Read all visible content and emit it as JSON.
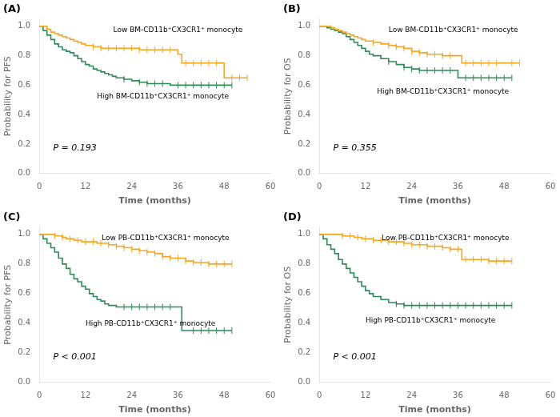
{
  "chart_data": [
    {
      "type": "line",
      "line_style": "steps",
      "title": "(A)",
      "xlabel": "Time (months)",
      "ylabel": "Probability for PFS",
      "annotations": [
        "P = 0.193"
      ],
      "xlim": [
        0,
        60
      ],
      "ylim": [
        0.0,
        1.05
      ],
      "xticks": [
        0,
        12,
        24,
        36,
        48,
        60
      ],
      "yticks": [
        {
          "value": 0.0,
          "label": "0.0"
        },
        {
          "value": 0.2,
          "label": "0.2"
        },
        {
          "value": 0.4,
          "label": "0.4"
        },
        {
          "value": 0.6,
          "label": "0.6"
        },
        {
          "value": 0.8,
          "label": "0.8"
        },
        {
          "value": 1.0,
          "label": "1.0"
        }
      ],
      "grid": false,
      "series": [
        {
          "name": "Low BM-CD11b⁺CX3CR1⁺ monocyte",
          "color": "#F5A623",
          "x": [
            0,
            1,
            2,
            3,
            4,
            5,
            6,
            7,
            8,
            9,
            10,
            11,
            12,
            14,
            16,
            18,
            20,
            22,
            24,
            26,
            28,
            30,
            32,
            34,
            36,
            37,
            38,
            40,
            42,
            44,
            46,
            48,
            50,
            52,
            54
          ],
          "values": [
            1.0,
            1.0,
            0.98,
            0.96,
            0.95,
            0.94,
            0.93,
            0.92,
            0.91,
            0.9,
            0.89,
            0.88,
            0.87,
            0.86,
            0.85,
            0.85,
            0.85,
            0.85,
            0.85,
            0.84,
            0.84,
            0.84,
            0.84,
            0.84,
            0.81,
            0.75,
            0.75,
            0.75,
            0.75,
            0.75,
            0.75,
            0.65,
            0.65,
            0.65,
            0.65
          ],
          "censor_x": [
            14,
            16,
            18,
            20,
            22,
            24,
            26,
            28,
            30,
            32,
            34,
            38,
            40,
            42,
            44,
            46,
            50,
            52,
            54
          ],
          "censor_y": [
            0.86,
            0.85,
            0.85,
            0.85,
            0.85,
            0.85,
            0.84,
            0.84,
            0.84,
            0.84,
            0.84,
            0.75,
            0.75,
            0.75,
            0.75,
            0.75,
            0.65,
            0.65,
            0.65
          ]
        },
        {
          "name": "High BM-CD11b⁺CX3CR1⁺ monocyte",
          "color": "#2E8B57",
          "x": [
            0,
            1,
            2,
            3,
            4,
            5,
            6,
            7,
            8,
            9,
            10,
            11,
            12,
            13,
            14,
            15,
            16,
            17,
            18,
            19,
            20,
            22,
            24,
            26,
            28,
            30,
            32,
            34,
            36,
            38,
            40,
            42,
            44,
            46,
            48,
            50
          ],
          "values": [
            1.0,
            0.97,
            0.94,
            0.91,
            0.88,
            0.86,
            0.84,
            0.83,
            0.82,
            0.8,
            0.78,
            0.76,
            0.74,
            0.73,
            0.71,
            0.7,
            0.69,
            0.68,
            0.67,
            0.66,
            0.65,
            0.64,
            0.63,
            0.62,
            0.61,
            0.61,
            0.61,
            0.6,
            0.6,
            0.6,
            0.6,
            0.6,
            0.6,
            0.6,
            0.6,
            0.6
          ],
          "censor_x": [
            22,
            26,
            28,
            30,
            32,
            36,
            38,
            40,
            42,
            44,
            46,
            48,
            50
          ],
          "censor_y": [
            0.64,
            0.62,
            0.61,
            0.61,
            0.61,
            0.6,
            0.6,
            0.6,
            0.6,
            0.6,
            0.6,
            0.6,
            0.6
          ]
        }
      ]
    },
    {
      "type": "line",
      "line_style": "steps",
      "title": "(B)",
      "xlabel": "Time (months)",
      "ylabel": "Probability for OS",
      "annotations": [
        "P = 0.355"
      ],
      "xlim": [
        0,
        60
      ],
      "ylim": [
        0.0,
        1.05
      ],
      "xticks": [
        0,
        12,
        24,
        36,
        48,
        60
      ],
      "yticks": [
        {
          "value": 0.0,
          "label": "0.0"
        },
        {
          "value": 0.2,
          "label": "0.2"
        },
        {
          "value": 0.4,
          "label": "0.4"
        },
        {
          "value": 0.6,
          "label": "0.6"
        },
        {
          "value": 0.8,
          "label": "0.8"
        },
        {
          "value": 1.0,
          "label": "1.0"
        }
      ],
      "grid": false,
      "series": [
        {
          "name": "Low BM-CD11b⁺CX3CR1⁺ monocyte",
          "color": "#F5A623",
          "x": [
            0,
            2,
            3,
            4,
            5,
            6,
            7,
            8,
            9,
            10,
            11,
            12,
            14,
            16,
            18,
            20,
            22,
            24,
            26,
            28,
            30,
            32,
            34,
            36,
            37,
            38,
            40,
            42,
            44,
            46,
            48,
            50,
            52
          ],
          "values": [
            1.0,
            1.0,
            0.99,
            0.98,
            0.97,
            0.96,
            0.95,
            0.94,
            0.93,
            0.92,
            0.91,
            0.9,
            0.89,
            0.88,
            0.87,
            0.86,
            0.85,
            0.83,
            0.82,
            0.81,
            0.81,
            0.8,
            0.8,
            0.8,
            0.75,
            0.75,
            0.75,
            0.75,
            0.75,
            0.75,
            0.75,
            0.75,
            0.75
          ],
          "censor_x": [
            14,
            18,
            20,
            22,
            24,
            26,
            28,
            30,
            32,
            34,
            38,
            40,
            42,
            44,
            46,
            50,
            52
          ],
          "censor_y": [
            0.89,
            0.87,
            0.86,
            0.85,
            0.83,
            0.82,
            0.81,
            0.81,
            0.8,
            0.8,
            0.75,
            0.75,
            0.75,
            0.75,
            0.75,
            0.75,
            0.75
          ]
        },
        {
          "name": "High BM-CD11b⁺CX3CR1⁺ monocyte",
          "color": "#2E8B57",
          "x": [
            0,
            2,
            3,
            4,
            5,
            6,
            7,
            8,
            9,
            10,
            11,
            12,
            13,
            14,
            16,
            18,
            20,
            22,
            24,
            26,
            28,
            30,
            32,
            34,
            36,
            37,
            38,
            40,
            42,
            44,
            46,
            48,
            50
          ],
          "values": [
            1.0,
            0.99,
            0.98,
            0.97,
            0.96,
            0.95,
            0.93,
            0.91,
            0.89,
            0.87,
            0.85,
            0.83,
            0.81,
            0.8,
            0.78,
            0.76,
            0.74,
            0.72,
            0.71,
            0.7,
            0.7,
            0.7,
            0.7,
            0.7,
            0.65,
            0.65,
            0.65,
            0.65,
            0.65,
            0.65,
            0.65,
            0.65,
            0.65
          ],
          "censor_x": [
            18,
            22,
            24,
            26,
            28,
            30,
            32,
            34,
            38,
            40,
            42,
            44,
            46,
            48,
            50
          ],
          "censor_y": [
            0.76,
            0.72,
            0.71,
            0.7,
            0.7,
            0.7,
            0.7,
            0.7,
            0.65,
            0.65,
            0.65,
            0.65,
            0.65,
            0.65,
            0.65
          ]
        }
      ]
    },
    {
      "type": "line",
      "line_style": "steps",
      "title": "(C)",
      "xlabel": "Time (months)",
      "ylabel": "Probability for PFS",
      "annotations": [
        "P < 0.001"
      ],
      "xlim": [
        0,
        60
      ],
      "ylim": [
        0.0,
        1.05
      ],
      "xticks": [
        0,
        12,
        24,
        36,
        48,
        60
      ],
      "yticks": [
        {
          "value": 0.0,
          "label": "0.0"
        },
        {
          "value": 0.2,
          "label": "0.2"
        },
        {
          "value": 0.4,
          "label": "0.4"
        },
        {
          "value": 0.6,
          "label": "0.6"
        },
        {
          "value": 0.8,
          "label": "0.8"
        },
        {
          "value": 1.0,
          "label": "1.0"
        }
      ],
      "grid": false,
      "series": [
        {
          "name": "Low PB-CD11b⁺CX3CR1⁺ monocyte",
          "color": "#F5A623",
          "x": [
            0,
            1,
            2,
            3,
            4,
            5,
            6,
            7,
            8,
            9,
            10,
            11,
            12,
            13,
            14,
            15,
            16,
            18,
            20,
            22,
            24,
            26,
            28,
            30,
            32,
            34,
            36,
            38,
            40,
            42,
            44,
            46,
            48,
            50
          ],
          "values": [
            1.0,
            1.0,
            1.0,
            1.0,
            0.99,
            0.99,
            0.98,
            0.97,
            0.97,
            0.96,
            0.96,
            0.95,
            0.95,
            0.95,
            0.95,
            0.94,
            0.94,
            0.93,
            0.92,
            0.91,
            0.9,
            0.89,
            0.88,
            0.87,
            0.85,
            0.84,
            0.84,
            0.82,
            0.81,
            0.81,
            0.8,
            0.8,
            0.8,
            0.8
          ],
          "censor_x": [
            4,
            6,
            8,
            10,
            12,
            14,
            16,
            18,
            20,
            22,
            24,
            26,
            28,
            30,
            32,
            34,
            36,
            38,
            40,
            42,
            44,
            46,
            48,
            50
          ],
          "censor_y": [
            0.99,
            0.98,
            0.97,
            0.96,
            0.95,
            0.95,
            0.94,
            0.93,
            0.92,
            0.91,
            0.9,
            0.89,
            0.88,
            0.87,
            0.85,
            0.84,
            0.84,
            0.82,
            0.81,
            0.81,
            0.8,
            0.8,
            0.8,
            0.8
          ]
        },
        {
          "name": "High PB-CD11b⁺CX3CR1⁺ monocyte",
          "color": "#2E8B57",
          "x": [
            0,
            1,
            2,
            3,
            4,
            5,
            6,
            7,
            8,
            9,
            10,
            11,
            12,
            13,
            14,
            15,
            16,
            17,
            18,
            20,
            22,
            24,
            26,
            28,
            30,
            32,
            34,
            36,
            37,
            38,
            40,
            42,
            44,
            46,
            48,
            50
          ],
          "values": [
            1.0,
            0.97,
            0.94,
            0.91,
            0.88,
            0.84,
            0.8,
            0.77,
            0.73,
            0.7,
            0.68,
            0.65,
            0.63,
            0.6,
            0.58,
            0.56,
            0.55,
            0.53,
            0.52,
            0.51,
            0.51,
            0.51,
            0.51,
            0.51,
            0.51,
            0.51,
            0.51,
            0.51,
            0.35,
            0.35,
            0.35,
            0.35,
            0.35,
            0.35,
            0.35,
            0.35
          ],
          "censor_x": [
            22,
            24,
            26,
            28,
            30,
            32,
            34,
            40,
            42,
            44,
            46,
            48,
            50
          ],
          "censor_y": [
            0.51,
            0.51,
            0.51,
            0.51,
            0.51,
            0.51,
            0.51,
            0.35,
            0.35,
            0.35,
            0.35,
            0.35,
            0.35
          ]
        }
      ]
    },
    {
      "type": "line",
      "line_style": "steps",
      "title": "(D)",
      "xlabel": "Time (months)",
      "ylabel": "Probability for OS",
      "annotations": [
        "P < 0.001"
      ],
      "xlim": [
        0,
        60
      ],
      "ylim": [
        0.0,
        1.05
      ],
      "xticks": [
        0,
        12,
        24,
        36,
        48,
        60
      ],
      "yticks": [
        {
          "value": 0.0,
          "label": "0.0"
        },
        {
          "value": 0.2,
          "label": "0.2"
        },
        {
          "value": 0.4,
          "label": "0.4"
        },
        {
          "value": 0.6,
          "label": "0.6"
        },
        {
          "value": 0.8,
          "label": "0.8"
        },
        {
          "value": 1.0,
          "label": "1.0"
        }
      ],
      "grid": false,
      "series": [
        {
          "name": "Low PB-CD11b⁺CX3CR1⁺ monocyte",
          "color": "#F5A623",
          "x": [
            0,
            1,
            2,
            3,
            4,
            5,
            6,
            7,
            8,
            9,
            10,
            11,
            12,
            14,
            16,
            18,
            20,
            22,
            24,
            26,
            28,
            30,
            32,
            34,
            36,
            37,
            38,
            40,
            42,
            44,
            46,
            48,
            50
          ],
          "values": [
            1.0,
            1.0,
            1.0,
            1.0,
            1.0,
            1.0,
            0.99,
            0.99,
            0.99,
            0.98,
            0.98,
            0.97,
            0.97,
            0.96,
            0.96,
            0.95,
            0.95,
            0.94,
            0.93,
            0.93,
            0.92,
            0.92,
            0.91,
            0.9,
            0.9,
            0.83,
            0.83,
            0.83,
            0.83,
            0.82,
            0.82,
            0.82,
            0.82
          ],
          "censor_x": [
            6,
            8,
            10,
            12,
            14,
            16,
            18,
            20,
            22,
            24,
            26,
            28,
            30,
            32,
            34,
            36,
            38,
            40,
            42,
            44,
            46,
            48,
            50
          ],
          "censor_y": [
            0.99,
            0.99,
            0.98,
            0.97,
            0.96,
            0.96,
            0.95,
            0.95,
            0.94,
            0.93,
            0.93,
            0.92,
            0.92,
            0.91,
            0.9,
            0.9,
            0.83,
            0.83,
            0.83,
            0.82,
            0.82,
            0.82,
            0.82
          ]
        },
        {
          "name": "High PB-CD11b⁺CX3CR1⁺ monocyte",
          "color": "#2E8B57",
          "x": [
            0,
            1,
            2,
            3,
            4,
            5,
            6,
            7,
            8,
            9,
            10,
            11,
            12,
            13,
            14,
            16,
            18,
            20,
            22,
            24,
            26,
            28,
            30,
            32,
            34,
            36,
            38,
            40,
            42,
            44,
            46,
            48,
            50
          ],
          "values": [
            1.0,
            0.97,
            0.93,
            0.9,
            0.87,
            0.83,
            0.8,
            0.77,
            0.74,
            0.71,
            0.68,
            0.65,
            0.62,
            0.6,
            0.58,
            0.56,
            0.54,
            0.53,
            0.52,
            0.52,
            0.52,
            0.52,
            0.52,
            0.52,
            0.52,
            0.52,
            0.52,
            0.52,
            0.52,
            0.52,
            0.52,
            0.52,
            0.52
          ],
          "censor_x": [
            20,
            22,
            24,
            26,
            28,
            30,
            32,
            34,
            36,
            38,
            40,
            42,
            44,
            46,
            48,
            50
          ],
          "censor_y": [
            0.53,
            0.52,
            0.52,
            0.52,
            0.52,
            0.52,
            0.52,
            0.52,
            0.52,
            0.52,
            0.52,
            0.52,
            0.52,
            0.52,
            0.52,
            0.52
          ]
        }
      ]
    }
  ]
}
